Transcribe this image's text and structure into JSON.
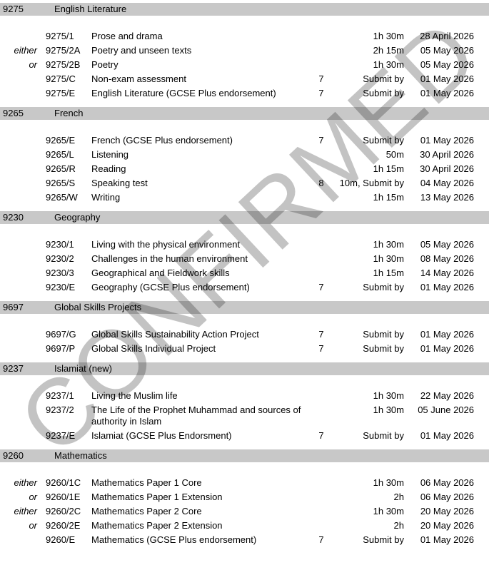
{
  "watermark": {
    "text": "CONFIRMED"
  },
  "colors": {
    "header_bar": "#c8c8c8",
    "watermark": "#c3c3c3",
    "text": "#000000"
  },
  "sections": [
    {
      "code": "9275",
      "title": "English Literature",
      "rows": [
        {
          "option": "",
          "paper": "9275/1",
          "title": "Prose and drama",
          "number": "",
          "duration": "1h 30m",
          "date": "28 April 2026"
        },
        {
          "option": "either",
          "paper": "9275/2A",
          "title": "Poetry and unseen texts",
          "number": "",
          "duration": "2h 15m",
          "date": "05 May 2026"
        },
        {
          "option": "or",
          "paper": "9275/2B",
          "title": "Poetry",
          "number": "",
          "duration": "1h 30m",
          "date": "05 May 2026"
        },
        {
          "option": "",
          "paper": "9275/C",
          "title": "Non-exam assessment",
          "number": "7",
          "duration": "Submit by",
          "date": "01 May 2026"
        },
        {
          "option": "",
          "paper": "9275/E",
          "title": "English Literature (GCSE Plus endorsement)",
          "number": "7",
          "duration": "Submit by",
          "date": "01 May 2026"
        }
      ]
    },
    {
      "code": "9265",
      "title": "French",
      "rows": [
        {
          "option": "",
          "paper": "9265/E",
          "title": "French (GCSE Plus endorsement)",
          "number": "7",
          "duration": "Submit by",
          "date": "01 May 2026"
        },
        {
          "option": "",
          "paper": "9265/L",
          "title": "Listening",
          "number": "",
          "duration": "50m",
          "date": "30 April 2026"
        },
        {
          "option": "",
          "paper": "9265/R",
          "title": "Reading",
          "number": "",
          "duration": "1h 15m",
          "date": "30 April 2026"
        },
        {
          "option": "",
          "paper": "9265/S",
          "title": "Speaking test",
          "number": "8",
          "duration": "10m, Submit by",
          "date": "04 May 2026"
        },
        {
          "option": "",
          "paper": "9265/W",
          "title": "Writing",
          "number": "",
          "duration": "1h 15m",
          "date": "13 May 2026"
        }
      ]
    },
    {
      "code": "9230",
      "title": "Geography",
      "rows": [
        {
          "option": "",
          "paper": "9230/1",
          "title": "Living with the physical environment",
          "number": "",
          "duration": "1h 30m",
          "date": "05 May 2026"
        },
        {
          "option": "",
          "paper": "9230/2",
          "title": "Challenges in the human environment",
          "number": "",
          "duration": "1h 30m",
          "date": "08 May 2026"
        },
        {
          "option": "",
          "paper": "9230/3",
          "title": "Geographical and Fieldwork skills",
          "number": "",
          "duration": "1h 15m",
          "date": "14 May 2026"
        },
        {
          "option": "",
          "paper": "9230/E",
          "title": "Geography (GCSE Plus endorsement)",
          "number": "7",
          "duration": "Submit by",
          "date": "01 May 2026"
        }
      ]
    },
    {
      "code": "9697",
      "title": "Global Skills Projects",
      "rows": [
        {
          "option": "",
          "paper": "9697/G",
          "title": "Global Skills Sustainability Action Project",
          "number": "7",
          "duration": "Submit by",
          "date": "01 May 2026"
        },
        {
          "option": "",
          "paper": "9697/P",
          "title": "Global Skills Individual Project",
          "number": "7",
          "duration": "Submit by",
          "date": "01 May 2026"
        }
      ]
    },
    {
      "code": "9237",
      "title": "Islamiat (new)",
      "rows": [
        {
          "option": "",
          "paper": "9237/1",
          "title": "Living the Muslim life",
          "number": "",
          "duration": "1h 30m",
          "date": "22 May 2026"
        },
        {
          "option": "",
          "paper": "9237/2",
          "title": "The Life of the Prophet Muhammad and sources of authority in Islam",
          "number": "",
          "duration": "1h 30m",
          "date": "05 June 2026"
        },
        {
          "option": "",
          "paper": "9237/E",
          "title": "Islamiat (GCSE Plus Endorsment)",
          "number": "7",
          "duration": "Submit by",
          "date": "01 May 2026"
        }
      ]
    },
    {
      "code": "9260",
      "title": "Mathematics",
      "rows": [
        {
          "option": "either",
          "paper": "9260/1C",
          "title": "Mathematics Paper 1 Core",
          "number": "",
          "duration": "1h 30m",
          "date": "06 May 2026"
        },
        {
          "option": "or",
          "paper": "9260/1E",
          "title": "Mathematics Paper 1 Extension",
          "number": "",
          "duration": "2h",
          "date": "06 May 2026"
        },
        {
          "option": "either",
          "paper": "9260/2C",
          "title": "Mathematics Paper 2 Core",
          "number": "",
          "duration": "1h 30m",
          "date": "20 May 2026"
        },
        {
          "option": "or",
          "paper": "9260/2E",
          "title": "Mathematics Paper 2 Extension",
          "number": "",
          "duration": "2h",
          "date": "20 May 2026"
        },
        {
          "option": "",
          "paper": "9260/E",
          "title": "Mathematics (GCSE Plus endorsement)",
          "number": "7",
          "duration": "Submit by",
          "date": "01 May 2026"
        }
      ]
    }
  ]
}
